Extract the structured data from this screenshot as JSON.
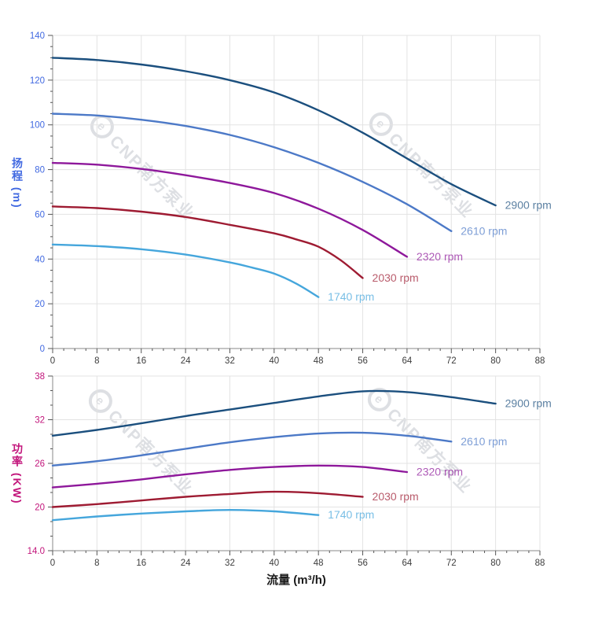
{
  "background": "#ffffff",
  "watermark": {
    "logo": "e",
    "text": "CNP南方泵业",
    "color": "#c7cbd1"
  },
  "layout_text": {
    "flow_axis_title": "流量 (m³/h)",
    "head_axis_title": "扬程 (m)",
    "power_axis_title": "功率 (KW)"
  },
  "colors": {
    "head_axis": "#4169E1",
    "power_axis": "#C2157B",
    "x_tick_labels": "#3d3d3d",
    "grid": "#e3e3e3",
    "axis_line": "#8a8a8a",
    "tick_mark": "#555555"
  },
  "chart_data": [
    {
      "type": "line",
      "title": "",
      "xlabel": "",
      "ylabel": "扬程 (m)",
      "xlim": [
        0,
        88
      ],
      "ylim": [
        0,
        140
      ],
      "x_ticks": [
        0,
        8,
        16,
        24,
        32,
        40,
        48,
        56,
        64,
        72,
        80,
        88
      ],
      "x_minor_step": 2,
      "y_ticks": [
        0,
        20,
        40,
        60,
        80,
        100,
        120,
        140
      ],
      "y_tick_labels": [
        "0",
        "20",
        "40",
        "60",
        "80",
        "100",
        "120",
        "140"
      ],
      "y_minor_step": 5,
      "grid": true,
      "legend_position": "at-line-end",
      "axis_label_color": "#4169E1",
      "series": [
        {
          "name": "2900 rpm",
          "color": "#1B4F7E",
          "x": [
            0,
            8,
            16,
            24,
            32,
            40,
            48,
            56,
            64,
            72,
            80
          ],
          "y": [
            130,
            129,
            127,
            124,
            120,
            114.5,
            106.5,
            96.5,
            85,
            73.5,
            64
          ]
        },
        {
          "name": "2610 rpm",
          "color": "#4C79C7",
          "x": [
            0,
            8,
            16,
            24,
            32,
            40,
            48,
            56,
            64,
            72
          ],
          "y": [
            105,
            104.2,
            102.3,
            99.5,
            95.5,
            90,
            83,
            74.5,
            64.5,
            52.5
          ]
        },
        {
          "name": "2320 rpm",
          "color": "#8E189B",
          "x": [
            0,
            8,
            16,
            24,
            32,
            40,
            48,
            56,
            64
          ],
          "y": [
            83,
            82.2,
            80.3,
            77.5,
            74,
            69.5,
            62.5,
            53,
            41
          ]
        },
        {
          "name": "2030 rpm",
          "color": "#9E1B32",
          "x": [
            0,
            8,
            16,
            24,
            32,
            40,
            44,
            48,
            52,
            56
          ],
          "y": [
            63.5,
            62.8,
            61.2,
            58.8,
            55.3,
            51.5,
            48.8,
            45.5,
            39.5,
            31.5
          ]
        },
        {
          "name": "1740 rpm",
          "color": "#45A6DC",
          "x": [
            0,
            8,
            16,
            24,
            32,
            36,
            40,
            44,
            48
          ],
          "y": [
            46.5,
            45.8,
            44.4,
            42,
            38.5,
            36.2,
            33.5,
            29,
            23
          ]
        }
      ]
    },
    {
      "type": "line",
      "title": "",
      "xlabel": "流量 (m³/h)",
      "ylabel": "功率 (KW)",
      "xlim": [
        0,
        88
      ],
      "ylim": [
        14,
        38
      ],
      "x_ticks": [
        0,
        8,
        16,
        24,
        32,
        40,
        48,
        56,
        64,
        72,
        80,
        88
      ],
      "x_minor_step": 2,
      "y_ticks": [
        14,
        20,
        26,
        32,
        38
      ],
      "y_tick_labels": [
        "14.0",
        "20",
        "26",
        "32",
        "38"
      ],
      "y_minor_step": 2,
      "grid": true,
      "legend_position": "at-line-end",
      "axis_label_color": "#C2157B",
      "series": [
        {
          "name": "2900 rpm",
          "color": "#1B4F7E",
          "x": [
            0,
            8,
            16,
            24,
            32,
            40,
            48,
            56,
            64,
            72,
            80
          ],
          "y": [
            29.8,
            30.6,
            31.5,
            32.5,
            33.4,
            34.3,
            35.2,
            35.9,
            35.8,
            35.1,
            34.2
          ]
        },
        {
          "name": "2610 rpm",
          "color": "#4C79C7",
          "x": [
            0,
            8,
            16,
            24,
            32,
            40,
            48,
            56,
            64,
            72
          ],
          "y": [
            25.7,
            26.3,
            27.1,
            28,
            28.9,
            29.6,
            30.1,
            30.2,
            29.8,
            29
          ]
        },
        {
          "name": "2320 rpm",
          "color": "#8E189B",
          "x": [
            0,
            8,
            16,
            24,
            32,
            40,
            48,
            56,
            64
          ],
          "y": [
            22.7,
            23.2,
            23.8,
            24.5,
            25.1,
            25.5,
            25.7,
            25.5,
            24.8
          ]
        },
        {
          "name": "2030 rpm",
          "color": "#9E1B32",
          "x": [
            0,
            8,
            16,
            24,
            32,
            40,
            48,
            56
          ],
          "y": [
            20,
            20.4,
            20.9,
            21.4,
            21.8,
            22.1,
            21.9,
            21.4
          ]
        },
        {
          "name": "1740 rpm",
          "color": "#45A6DC",
          "x": [
            0,
            8,
            16,
            24,
            32,
            40,
            48
          ],
          "y": [
            18.2,
            18.7,
            19.1,
            19.4,
            19.6,
            19.4,
            18.9
          ]
        }
      ]
    }
  ]
}
